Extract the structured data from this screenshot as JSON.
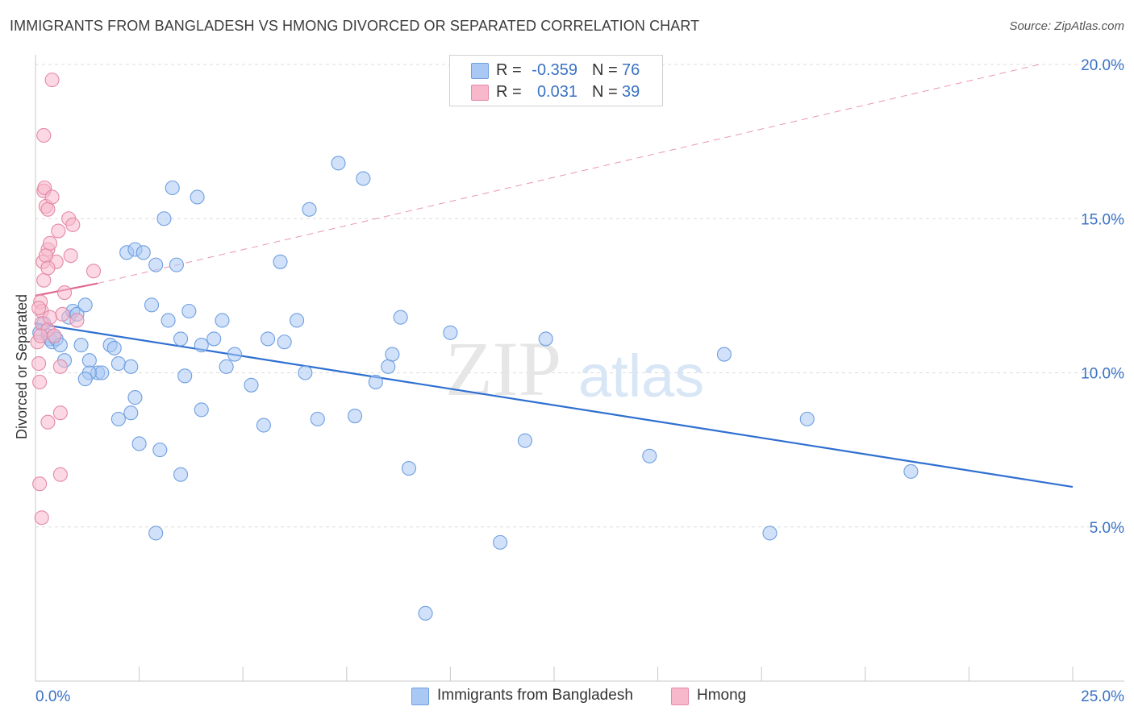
{
  "title": "IMMIGRANTS FROM BANGLADESH VS HMONG DIVORCED OR SEPARATED CORRELATION CHART",
  "source": "Source: ZipAtlas.com",
  "watermark": {
    "zip": "ZIP",
    "atlas": "atlas"
  },
  "legend": {
    "rows": [
      {
        "r_label": "R =",
        "r_value": "-0.359",
        "n_label": "N =",
        "n_value": "76",
        "color": "#aac8f4"
      },
      {
        "r_label": "R =",
        "r_value": "0.031",
        "n_label": "N =",
        "n_value": "39",
        "color": "#f8b8cc"
      }
    ]
  },
  "bottom_legend": [
    {
      "label": "Immigrants from Bangladesh",
      "color": "#aac8f4"
    },
    {
      "label": "Hmong",
      "color": "#f8b8cc"
    }
  ],
  "chart_data": {
    "type": "scatter",
    "ylabel": "Divorced or Separated",
    "xlim": [
      0,
      25
    ],
    "ylim": [
      0,
      20
    ],
    "y_ticks": [
      {
        "value": 5,
        "label": "5.0%"
      },
      {
        "value": 10,
        "label": "10.0%"
      },
      {
        "value": 15,
        "label": "15.0%"
      },
      {
        "value": 20,
        "label": "20.0%"
      }
    ],
    "x_tick_labels": [
      {
        "value": 0,
        "label": "0.0%"
      },
      {
        "value": 25,
        "label": "25.0%"
      }
    ],
    "grid": true,
    "series": [
      {
        "name": "Immigrants from Bangladesh",
        "color": "#aac8f4",
        "stroke": "#6f9fe0",
        "trend": {
          "x0": 0,
          "y0": 11.6,
          "x1": 25,
          "y1": 6.3,
          "color": "#2f6fd0"
        },
        "points": [
          [
            0.1,
            11.3
          ],
          [
            0.2,
            11.6
          ],
          [
            0.3,
            11.2
          ],
          [
            0.35,
            11.1
          ],
          [
            0.4,
            11.0
          ],
          [
            0.45,
            11.2
          ],
          [
            0.5,
            11.1
          ],
          [
            0.6,
            10.9
          ],
          [
            0.7,
            10.4
          ],
          [
            0.8,
            11.8
          ],
          [
            0.9,
            12.0
          ],
          [
            1.0,
            11.9
          ],
          [
            1.2,
            12.2
          ],
          [
            1.1,
            10.9
          ],
          [
            1.3,
            10.4
          ],
          [
            1.5,
            10.0
          ],
          [
            1.6,
            10.0
          ],
          [
            1.3,
            10.0
          ],
          [
            1.2,
            9.8
          ],
          [
            1.8,
            10.9
          ],
          [
            1.9,
            10.8
          ],
          [
            2.0,
            10.3
          ],
          [
            2.3,
            10.2
          ],
          [
            2.2,
            13.9
          ],
          [
            2.4,
            14.0
          ],
          [
            2.6,
            13.9
          ],
          [
            2.8,
            12.2
          ],
          [
            2.9,
            13.5
          ],
          [
            3.1,
            15.0
          ],
          [
            3.3,
            16.0
          ],
          [
            3.2,
            11.7
          ],
          [
            3.5,
            11.1
          ],
          [
            3.4,
            13.5
          ],
          [
            3.7,
            12.0
          ],
          [
            3.6,
            9.9
          ],
          [
            3.9,
            15.7
          ],
          [
            4.0,
            10.9
          ],
          [
            4.3,
            11.1
          ],
          [
            4.5,
            11.7
          ],
          [
            4.6,
            10.2
          ],
          [
            4.8,
            10.6
          ],
          [
            5.2,
            9.6
          ],
          [
            5.6,
            11.1
          ],
          [
            5.9,
            13.6
          ],
          [
            6.0,
            11.0
          ],
          [
            6.3,
            11.7
          ],
          [
            6.5,
            10.0
          ],
          [
            6.6,
            15.3
          ],
          [
            7.3,
            16.8
          ],
          [
            7.9,
            16.3
          ],
          [
            8.2,
            9.7
          ],
          [
            8.5,
            10.2
          ],
          [
            8.6,
            10.6
          ],
          [
            8.8,
            11.8
          ],
          [
            9.0,
            6.9
          ],
          [
            10.0,
            11.3
          ],
          [
            11.2,
            4.5
          ],
          [
            11.8,
            7.8
          ],
          [
            12.3,
            11.1
          ],
          [
            14.8,
            7.3
          ],
          [
            16.6,
            10.6
          ],
          [
            17.7,
            4.8
          ],
          [
            18.6,
            8.5
          ],
          [
            21.1,
            6.8
          ],
          [
            2.0,
            8.5
          ],
          [
            2.3,
            8.7
          ],
          [
            2.4,
            9.2
          ],
          [
            2.5,
            7.7
          ],
          [
            3.0,
            7.5
          ],
          [
            3.5,
            6.7
          ],
          [
            4.0,
            8.8
          ],
          [
            5.5,
            8.3
          ],
          [
            6.8,
            8.5
          ],
          [
            7.7,
            8.6
          ],
          [
            2.9,
            4.8
          ],
          [
            9.4,
            2.2
          ]
        ]
      },
      {
        "name": "Hmong",
        "color": "#f8b8cc",
        "stroke": "#e48aa6",
        "trend": {
          "x0": 0,
          "y0": 12.5,
          "x1": 1.5,
          "y1": 12.9,
          "x_ext": 24.2,
          "y_ext": 20.0,
          "color": "#e06a92"
        },
        "points": [
          [
            0.05,
            11.0
          ],
          [
            0.08,
            10.3
          ],
          [
            0.1,
            9.7
          ],
          [
            0.12,
            12.3
          ],
          [
            0.15,
            12.0
          ],
          [
            0.15,
            11.6
          ],
          [
            0.18,
            13.6
          ],
          [
            0.2,
            13.0
          ],
          [
            0.2,
            15.9
          ],
          [
            0.22,
            16.0
          ],
          [
            0.2,
            17.7
          ],
          [
            0.25,
            15.4
          ],
          [
            0.3,
            15.3
          ],
          [
            0.3,
            14.0
          ],
          [
            0.3,
            11.4
          ],
          [
            0.35,
            11.8
          ],
          [
            0.4,
            15.7
          ],
          [
            0.5,
            13.6
          ],
          [
            0.55,
            14.6
          ],
          [
            0.6,
            10.2
          ],
          [
            0.65,
            11.9
          ],
          [
            0.7,
            12.6
          ],
          [
            0.8,
            15.0
          ],
          [
            0.85,
            13.8
          ],
          [
            0.9,
            14.8
          ],
          [
            1.0,
            11.7
          ],
          [
            1.4,
            13.3
          ],
          [
            0.4,
            19.5
          ],
          [
            0.3,
            8.4
          ],
          [
            0.6,
            8.7
          ],
          [
            0.6,
            6.7
          ],
          [
            0.1,
            6.4
          ],
          [
            0.15,
            5.3
          ],
          [
            0.25,
            13.8
          ],
          [
            0.35,
            14.2
          ],
          [
            0.12,
            11.2
          ],
          [
            0.08,
            12.1
          ],
          [
            0.45,
            11.2
          ],
          [
            0.3,
            13.4
          ]
        ]
      }
    ]
  }
}
